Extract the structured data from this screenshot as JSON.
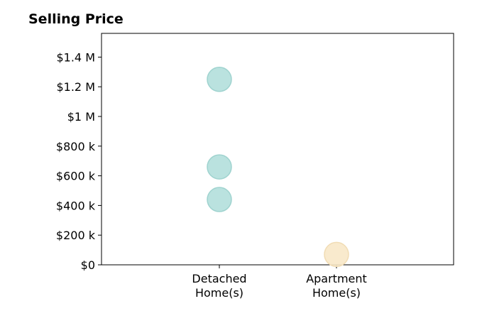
{
  "chart_data": {
    "type": "scatter",
    "title": "Selling Price",
    "xlabel": "",
    "ylabel": "",
    "categories": [
      [
        "Detached",
        "Home(s)"
      ],
      [
        "Apartment",
        "Home(s)"
      ]
    ],
    "ylim": [
      0,
      1560000
    ],
    "yticks": [
      0,
      200000,
      400000,
      600000,
      800000,
      1000000,
      1200000,
      1400000
    ],
    "ytick_labels": [
      "$0",
      "$200 k",
      "$400 k",
      "$600 k",
      "$800 k",
      "$1 M",
      "$1.2 M",
      "$1.4 M"
    ],
    "grid": false,
    "legend": "none",
    "points": [
      {
        "category": 0,
        "y": 1250000,
        "color": "#b2dfdb"
      },
      {
        "category": 0,
        "y": 660000,
        "color": "#b2dfdb"
      },
      {
        "category": 0,
        "y": 440000,
        "color": "#b2dfdb"
      },
      {
        "category": 1,
        "y": 70000,
        "color": "#f8e8c8"
      }
    ],
    "colors": {
      "detached_fill": "#b2dfdb",
      "detached_stroke": "#9fd3cf",
      "apartment_fill": "#f8e8c8",
      "apartment_stroke": "#f1dcb4"
    }
  }
}
